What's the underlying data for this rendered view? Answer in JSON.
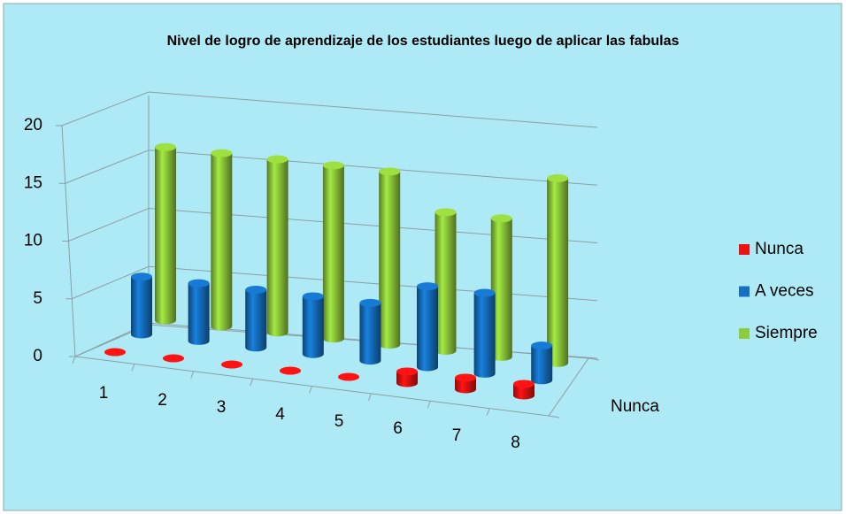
{
  "chart_data": {
    "type": "bar3d",
    "title": "Nivel de logro de aprendizaje de los estudiantes luego de aplicar las fabulas",
    "categories": [
      "1",
      "2",
      "3",
      "4",
      "5",
      "6",
      "7",
      "8"
    ],
    "depth_label": "Nunca",
    "series": [
      {
        "name": "Nunca",
        "color": "#ee1111",
        "values": [
          0,
          0,
          0,
          0,
          0,
          1,
          1,
          1
        ]
      },
      {
        "name": "A veces",
        "color": "#1570c2",
        "values": [
          5,
          5,
          5,
          5,
          5,
          7,
          7,
          3
        ]
      },
      {
        "name": "Siempre",
        "color": "#8fcc3a",
        "values": [
          15,
          15,
          15,
          15,
          15,
          12,
          12,
          16
        ]
      }
    ],
    "ylim": [
      0,
      20
    ],
    "yticks": [
      0,
      5,
      10,
      15,
      20
    ],
    "grid": true,
    "legend": "right"
  }
}
